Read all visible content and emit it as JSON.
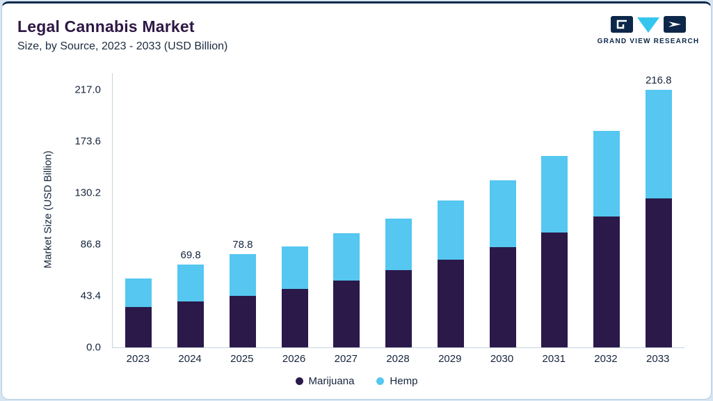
{
  "header": {
    "title": "Legal Cannabis Market",
    "subtitle": "Size, by Source, 2023 - 2033 (USD Billion)",
    "logo_text": "GRAND VIEW RESEARCH"
  },
  "colors": {
    "marijuana": "#2b1949",
    "hemp": "#55c7f1",
    "title_text": "#2d1845",
    "axis_text": "#15243b",
    "axis_line": "#c7d3de",
    "logo_navy": "#0c2749",
    "logo_cyan": "#35c6ef",
    "card_border": "#b6cde0",
    "page_background": "#d7e5f2"
  },
  "chart_data": {
    "type": "bar",
    "stacked": true,
    "title": "Legal Cannabis Market Size, by Source, 2023 - 2033 (USD Billion)",
    "xlabel": "",
    "ylabel": "Market Size (USD Billion)",
    "ylim": [
      0,
      217.0
    ],
    "yticks": [
      "0.0",
      "43.4",
      "86.8",
      "130.2",
      "173.6",
      "217.0"
    ],
    "grid": false,
    "legend_position": "bottom",
    "categories": [
      "2023",
      "2024",
      "2025",
      "2026",
      "2027",
      "2028",
      "2029",
      "2030",
      "2031",
      "2032",
      "2033"
    ],
    "series": [
      {
        "name": "Marijuana",
        "values": [
          34.0,
          38.5,
          43.4,
          49.5,
          56.5,
          65.0,
          74.0,
          84.5,
          96.5,
          110.0,
          125.5
        ]
      },
      {
        "name": "Hemp",
        "values": [
          24.0,
          31.3,
          35.4,
          35.5,
          39.5,
          43.5,
          50.0,
          56.0,
          65.0,
          72.5,
          91.3
        ]
      }
    ],
    "totals": [
      58.0,
      69.8,
      78.8,
      85.0,
      96.0,
      108.5,
      124.0,
      140.5,
      161.5,
      182.5,
      216.8
    ],
    "total_labels": [
      "",
      "69.8",
      "78.8",
      "",
      "",
      "",
      "",
      "",
      "",
      "",
      "216.8"
    ],
    "legend": [
      "Marijuana",
      "Hemp"
    ]
  }
}
